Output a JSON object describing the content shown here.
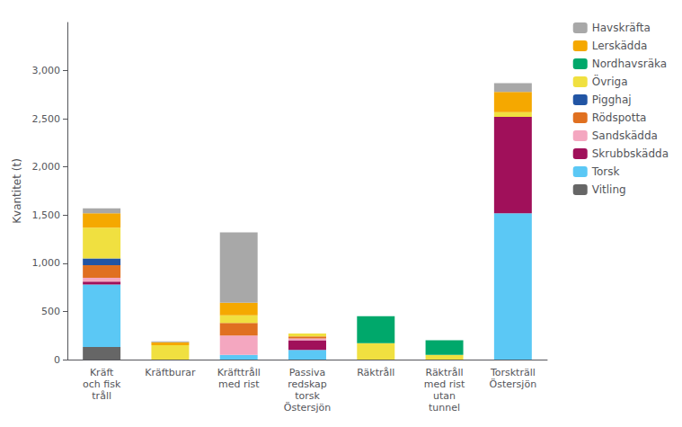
{
  "chart_data": {
    "type": "bar",
    "stacked": true,
    "ylabel": "Kvantitet (t)",
    "categories": [
      "Kräft\noch fisk\ntråll",
      "Kräftburar",
      "Kräfttråll\nmed rist",
      "Passiva\nredskap\ntorsk\nÖstersjön",
      "Räktråll",
      "Räktråll\nmed rist\nutan\ntunnel",
      "Torskträll\nÖstersjön"
    ],
    "series": [
      {
        "name": "Vitling",
        "color": "#666666",
        "values": [
          130,
          0,
          0,
          0,
          0,
          0,
          0
        ]
      },
      {
        "name": "Torsk",
        "color": "#5BC8F5",
        "values": [
          650,
          0,
          50,
          100,
          0,
          0,
          1520
        ]
      },
      {
        "name": "Skrubbskädda",
        "color": "#A0105A",
        "values": [
          30,
          0,
          0,
          100,
          0,
          0,
          1000
        ]
      },
      {
        "name": "Sandskädda",
        "color": "#F4A7C0",
        "values": [
          40,
          0,
          200,
          20,
          0,
          0,
          0
        ]
      },
      {
        "name": "Rödspotta",
        "color": "#E07020",
        "values": [
          130,
          0,
          130,
          20,
          0,
          0,
          0
        ]
      },
      {
        "name": "Pigghaj",
        "color": "#2255A4",
        "values": [
          70,
          0,
          0,
          0,
          0,
          0,
          0
        ]
      },
      {
        "name": "Övriga",
        "color": "#F0E040",
        "values": [
          320,
          150,
          80,
          30,
          170,
          50,
          50
        ]
      },
      {
        "name": "Nordhavsräka",
        "color": "#00A86B",
        "values": [
          0,
          0,
          0,
          0,
          280,
          150,
          0
        ]
      },
      {
        "name": "Lerskädda",
        "color": "#F5A800",
        "values": [
          150,
          30,
          130,
          0,
          0,
          0,
          210
        ]
      },
      {
        "name": "Havskräfta",
        "color": "#A8A8A8",
        "values": [
          50,
          10,
          730,
          0,
          0,
          0,
          90
        ]
      }
    ],
    "ylim": [
      0,
      3500
    ],
    "yticks": [
      0,
      500,
      1000,
      1500,
      2000,
      2500,
      3000
    ],
    "grid": false,
    "legend": "right"
  }
}
